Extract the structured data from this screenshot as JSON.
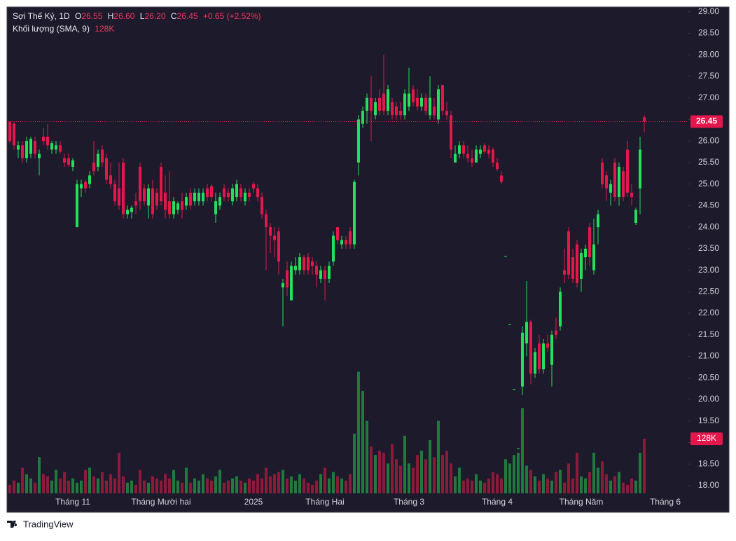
{
  "chart_data": {
    "type": "candlestick",
    "title": "Sợi Thế Kỷ, 1D",
    "legend": {
      "o_label": "O",
      "open": "26.55",
      "h_label": "H",
      "high": "26.60",
      "l_label": "L",
      "low": "26.20",
      "c_label": "C",
      "close": "26.45",
      "change": "+0.65 (+2.52%)"
    },
    "volume_title": "Khối lượng (SMA, 9)",
    "volume_value": "128K",
    "up_color": "#22e05b",
    "down_color": "#e3174c",
    "volume_up_color": "#1f7a3d",
    "volume_down_color": "#8c1a3b",
    "categories": [
      null,
      null,
      null,
      null,
      null,
      null,
      null,
      null,
      null,
      null,
      null,
      null,
      null,
      null,
      null,
      "Tháng 11",
      null,
      null,
      null,
      null,
      null,
      null,
      null,
      null,
      null,
      null,
      null,
      null,
      null,
      null,
      null,
      null,
      null,
      null,
      null,
      null,
      "Tháng Mười hai",
      null,
      null,
      null,
      null,
      null,
      null,
      null,
      null,
      null,
      null,
      null,
      null,
      null,
      null,
      null,
      null,
      null,
      null,
      null,
      null,
      null,
      "2025",
      null,
      null,
      null,
      null,
      null,
      null,
      null,
      null,
      null,
      null,
      null,
      null,
      null,
      null,
      null,
      null,
      "Tháng Hai",
      null,
      null,
      null,
      null,
      null,
      null,
      null,
      null,
      null,
      null,
      null,
      null,
      null,
      null,
      null,
      null,
      null,
      null,
      null,
      "Tháng 3",
      null,
      null,
      null,
      null,
      null,
      null,
      null,
      null,
      null,
      null,
      null,
      null,
      null,
      null,
      null,
      null,
      null,
      null,
      null,
      null,
      "Tháng 4",
      null,
      null,
      null,
      null,
      null,
      null,
      null,
      null,
      null,
      null,
      null,
      null,
      null,
      null,
      null,
      null,
      null,
      null,
      null,
      "Tháng Năm",
      null,
      null,
      null,
      null,
      null,
      null,
      null,
      null,
      null,
      null,
      null,
      null,
      null,
      null,
      null,
      null,
      null,
      null,
      null,
      "Tháng 6"
    ],
    "candles": [
      [
        26.45,
        26.45,
        25.95,
        26.0
      ],
      [
        26.4,
        26.45,
        25.8,
        25.9
      ],
      [
        25.8,
        26.0,
        25.6,
        25.9
      ],
      [
        25.9,
        26.0,
        25.5,
        25.6
      ],
      [
        25.6,
        26.1,
        25.5,
        26.0
      ],
      [
        25.7,
        26.1,
        25.6,
        26.05
      ],
      [
        26.0,
        26.1,
        25.6,
        25.7
      ],
      [
        25.6,
        25.8,
        25.2,
        25.7
      ],
      [
        26.1,
        26.3,
        25.9,
        26.0
      ],
      [
        26.1,
        26.4,
        25.8,
        25.9
      ],
      [
        25.8,
        26.0,
        25.7,
        25.95
      ],
      [
        25.8,
        26.0,
        25.7,
        25.9
      ],
      [
        25.9,
        26.0,
        25.7,
        25.75
      ],
      [
        25.6,
        25.7,
        25.4,
        25.5
      ],
      [
        25.6,
        25.7,
        25.4,
        25.45
      ],
      [
        25.4,
        25.6,
        25.3,
        25.55
      ],
      [
        24.0,
        25.1,
        24.0,
        25.0
      ],
      [
        24.9,
        25.1,
        24.7,
        25.0
      ],
      [
        25.05,
        25.1,
        24.8,
        24.9
      ],
      [
        25.0,
        25.3,
        24.9,
        25.2
      ],
      [
        25.5,
        26.0,
        25.2,
        25.3
      ],
      [
        25.4,
        25.8,
        25.3,
        25.7
      ],
      [
        25.8,
        25.9,
        25.4,
        25.5
      ],
      [
        25.6,
        25.7,
        25.0,
        25.1
      ],
      [
        25.2,
        25.5,
        24.9,
        25.0
      ],
      [
        25.0,
        25.1,
        24.5,
        24.6
      ],
      [
        24.9,
        25.5,
        24.4,
        24.5
      ],
      [
        25.5,
        25.6,
        24.2,
        24.3
      ],
      [
        24.3,
        24.5,
        24.2,
        24.4
      ],
      [
        24.35,
        24.5,
        24.2,
        24.45
      ],
      [
        24.6,
        24.8,
        24.3,
        24.5
      ],
      [
        25.4,
        25.5,
        24.4,
        24.6
      ],
      [
        24.9,
        25.0,
        24.5,
        24.6
      ],
      [
        24.5,
        25.0,
        24.2,
        24.9
      ],
      [
        24.9,
        25.1,
        24.2,
        24.3
      ],
      [
        24.8,
        24.9,
        24.4,
        24.5
      ],
      [
        25.4,
        25.5,
        24.5,
        24.6
      ],
      [
        24.8,
        25.2,
        24.2,
        24.4
      ],
      [
        24.6,
        25.3,
        24.2,
        24.3
      ],
      [
        24.3,
        24.7,
        24.2,
        24.6
      ],
      [
        24.4,
        24.6,
        24.3,
        24.55
      ],
      [
        24.6,
        24.8,
        24.2,
        24.4
      ],
      [
        24.5,
        24.8,
        24.4,
        24.7
      ],
      [
        24.8,
        24.9,
        24.4,
        24.5
      ],
      [
        24.6,
        24.9,
        24.5,
        24.8
      ],
      [
        24.6,
        24.9,
        24.5,
        24.8
      ],
      [
        24.6,
        24.9,
        24.5,
        24.8
      ],
      [
        24.9,
        25.0,
        24.6,
        24.7
      ],
      [
        24.95,
        25.0,
        24.6,
        24.7
      ],
      [
        24.3,
        24.8,
        24.1,
        24.6
      ],
      [
        24.5,
        24.8,
        24.4,
        24.7
      ],
      [
        24.9,
        25.0,
        24.6,
        24.7
      ],
      [
        24.8,
        24.9,
        24.6,
        24.7
      ],
      [
        24.6,
        25.0,
        24.5,
        24.9
      ],
      [
        24.7,
        25.1,
        24.6,
        25.0
      ],
      [
        24.9,
        25.0,
        24.6,
        24.7
      ],
      [
        24.6,
        24.9,
        24.5,
        24.8
      ],
      [
        24.8,
        24.9,
        24.6,
        24.7
      ],
      [
        25.0,
        25.05,
        24.8,
        24.9
      ],
      [
        24.9,
        25.0,
        24.6,
        24.7
      ],
      [
        24.7,
        24.8,
        24.2,
        24.3
      ],
      [
        24.3,
        24.4,
        23.0,
        24.0
      ],
      [
        24.0,
        24.1,
        23.4,
        23.8
      ],
      [
        23.8,
        24.0,
        23.3,
        23.7
      ],
      [
        23.9,
        24.0,
        22.9,
        23.2
      ],
      [
        22.6,
        22.8,
        21.7,
        22.7
      ],
      [
        23.0,
        23.2,
        22.4,
        22.6
      ],
      [
        22.3,
        23.2,
        22.3,
        23.1
      ],
      [
        23.0,
        23.3,
        22.9,
        23.1
      ],
      [
        23.0,
        23.4,
        22.9,
        23.3
      ],
      [
        23.3,
        23.35,
        22.9,
        23.0
      ],
      [
        23.3,
        23.4,
        22.9,
        23.0
      ],
      [
        23.2,
        23.3,
        22.9,
        23.1
      ],
      [
        23.1,
        23.2,
        22.6,
        22.9
      ],
      [
        22.8,
        23.1,
        22.7,
        23.0
      ],
      [
        23.0,
        23.1,
        22.3,
        22.8
      ],
      [
        22.8,
        23.2,
        22.7,
        23.1
      ],
      [
        23.2,
        23.9,
        23.1,
        23.8
      ],
      [
        24.0,
        24.0,
        23.6,
        23.7
      ],
      [
        23.6,
        23.8,
        23.5,
        23.7
      ],
      [
        23.7,
        23.8,
        23.5,
        23.6
      ],
      [
        23.9,
        24.0,
        23.5,
        23.6
      ],
      [
        23.6,
        25.1,
        23.5,
        25.05
      ],
      [
        25.5,
        26.6,
        25.2,
        26.5
      ],
      [
        26.4,
        26.8,
        26.3,
        26.7
      ],
      [
        26.7,
        27.1,
        26.4,
        27.0
      ],
      [
        27.0,
        27.5,
        26.0,
        26.7
      ],
      [
        26.6,
        27.0,
        26.5,
        26.9
      ],
      [
        27.0,
        27.2,
        26.6,
        26.7
      ],
      [
        27.1,
        28.0,
        26.6,
        26.7
      ],
      [
        26.7,
        27.3,
        26.6,
        27.2
      ],
      [
        26.9,
        27.0,
        26.5,
        26.6
      ],
      [
        26.8,
        26.9,
        26.5,
        26.6
      ],
      [
        26.7,
        26.9,
        26.5,
        26.6
      ],
      [
        26.6,
        27.2,
        26.5,
        27.1
      ],
      [
        26.8,
        27.7,
        26.7,
        27.1
      ],
      [
        27.2,
        27.3,
        26.8,
        26.9
      ],
      [
        27.0,
        27.2,
        26.7,
        26.8
      ],
      [
        26.8,
        27.1,
        26.7,
        27.0
      ],
      [
        27.0,
        27.1,
        26.6,
        26.7
      ],
      [
        26.6,
        27.5,
        26.5,
        27.0
      ],
      [
        26.8,
        27.0,
        26.5,
        26.6
      ],
      [
        26.5,
        27.3,
        26.4,
        27.2
      ],
      [
        27.3,
        27.3,
        26.6,
        26.7
      ],
      [
        26.7,
        26.9,
        26.5,
        26.6
      ],
      [
        26.6,
        26.7,
        25.6,
        25.8
      ],
      [
        25.5,
        25.9,
        25.5,
        25.7
      ],
      [
        25.7,
        26.0,
        25.6,
        25.9
      ],
      [
        25.9,
        26.0,
        25.6,
        25.7
      ],
      [
        25.7,
        25.9,
        25.5,
        25.6
      ],
      [
        25.6,
        25.8,
        25.4,
        25.5
      ],
      [
        25.5,
        25.9,
        25.5,
        25.8
      ],
      [
        25.7,
        25.9,
        25.6,
        25.8
      ],
      [
        25.9,
        25.95,
        25.7,
        25.75
      ],
      [
        25.8,
        25.9,
        25.6,
        25.7
      ],
      [
        25.8,
        25.85,
        25.4,
        25.5
      ],
      [
        25.5,
        25.6,
        25.3,
        25.35
      ],
      [
        25.2,
        25.3,
        25.0,
        25.05
      ],
      [
        23.33,
        23.33,
        23.33,
        23.33
      ],
      [
        21.74,
        21.74,
        21.74,
        21.74
      ],
      [
        20.24,
        20.24,
        20.24,
        20.24
      ],
      [
        18.86,
        18.86,
        18.86,
        18.86
      ],
      [
        20.3,
        21.7,
        20.1,
        21.55
      ],
      [
        21.3,
        22.75,
        21.0,
        21.8
      ],
      [
        21.8,
        21.85,
        20.35,
        20.6
      ],
      [
        20.6,
        21.2,
        20.5,
        21.1
      ],
      [
        21.3,
        21.5,
        20.6,
        20.7
      ],
      [
        20.7,
        21.4,
        20.6,
        21.3
      ],
      [
        21.3,
        21.5,
        21.1,
        21.2
      ],
      [
        20.8,
        21.6,
        20.3,
        21.5
      ],
      [
        21.6,
        21.9,
        21.4,
        21.5
      ],
      [
        21.7,
        22.6,
        21.6,
        22.5
      ],
      [
        23.0,
        23.5,
        22.7,
        22.9
      ],
      [
        23.9,
        24.0,
        22.8,
        22.9
      ],
      [
        23.3,
        23.5,
        22.7,
        22.8
      ],
      [
        23.6,
        23.7,
        22.6,
        22.7
      ],
      [
        22.8,
        23.5,
        22.5,
        23.4
      ],
      [
        23.3,
        23.6,
        23.0,
        23.5
      ],
      [
        24.0,
        24.1,
        23.1,
        23.3
      ],
      [
        23.0,
        24.2,
        22.9,
        23.6
      ],
      [
        24.0,
        24.4,
        23.6,
        24.3
      ],
      [
        25.5,
        25.6,
        24.9,
        25.0
      ],
      [
        25.2,
        25.3,
        24.6,
        24.9
      ],
      [
        24.8,
        25.1,
        24.5,
        25.0
      ],
      [
        25.5,
        25.6,
        24.6,
        24.7
      ],
      [
        24.7,
        25.5,
        24.5,
        25.4
      ],
      [
        25.3,
        25.4,
        24.6,
        24.7
      ],
      [
        25.8,
        26.0,
        24.7,
        24.8
      ],
      [
        24.8,
        25.0,
        24.5,
        24.7
      ],
      [
        24.1,
        24.45,
        24.05,
        24.4
      ],
      [
        24.9,
        26.1,
        24.3,
        25.8
      ],
      [
        26.55,
        26.6,
        26.2,
        26.45
      ],
      null,
      null,
      null,
      null,
      null
    ],
    "volume": [
      20,
      30,
      25,
      60,
      45,
      35,
      25,
      85,
      45,
      40,
      30,
      55,
      35,
      50,
      30,
      35,
      25,
      30,
      55,
      60,
      40,
      35,
      50,
      30,
      45,
      35,
      95,
      40,
      25,
      30,
      20,
      55,
      30,
      25,
      40,
      35,
      30,
      45,
      35,
      55,
      30,
      25,
      60,
      25,
      35,
      30,
      45,
      35,
      30,
      40,
      55,
      25,
      30,
      35,
      40,
      30,
      25,
      35,
      30,
      45,
      35,
      60,
      40,
      45,
      50,
      55,
      35,
      40,
      30,
      45,
      35,
      25,
      20,
      30,
      45,
      60,
      35,
      50,
      40,
      35,
      30,
      45,
      140,
      285,
      240,
      170,
      110,
      90,
      100,
      95,
      70,
      115,
      80,
      65,
      135,
      70,
      60,
      90,
      100,
      80,
      125,
      85,
      170,
      90,
      100,
      70,
      40,
      60,
      30,
      35,
      30,
      45,
      30,
      25,
      35,
      50,
      45,
      35,
      80,
      70,
      90,
      95,
      200,
      65,
      55,
      40,
      30,
      45,
      35,
      30,
      50,
      55,
      25,
      70,
      35,
      95,
      40,
      35,
      50,
      95,
      60,
      75,
      45,
      30,
      40,
      50,
      25,
      20,
      35,
      30,
      95,
      128,
      null,
      null,
      null,
      null,
      null
    ],
    "ylim": [
      17.82,
      29.11
    ],
    "yticks": [
      {
        "value": 18,
        "label": "18.00"
      },
      {
        "value": 18.5,
        "label": "18.50"
      },
      {
        "value": 19,
        "label": "19.00"
      },
      {
        "value": 19.5,
        "label": "19.50"
      },
      {
        "value": 20,
        "label": "20.00"
      },
      {
        "value": 20.5,
        "label": "20.50"
      },
      {
        "value": 21,
        "label": "21.00"
      },
      {
        "value": 21.5,
        "label": "21.50"
      },
      {
        "value": 22,
        "label": "22.00"
      },
      {
        "value": 22.5,
        "label": "22.50"
      },
      {
        "value": 23,
        "label": "23.00"
      },
      {
        "value": 23.5,
        "label": "23.50"
      },
      {
        "value": 24,
        "label": "24.00"
      },
      {
        "value": 24.5,
        "label": "24.50"
      },
      {
        "value": 25,
        "label": "25.00"
      },
      {
        "value": 25.5,
        "label": "25.50"
      },
      {
        "value": 26,
        "label": "26.00"
      },
      {
        "value": 26.5,
        "label": "26.50"
      },
      {
        "value": 27,
        "label": "27.00"
      },
      {
        "value": 27.5,
        "label": "27.50"
      },
      {
        "value": 28,
        "label": "28.00"
      },
      {
        "value": 28.5,
        "label": "28.50"
      },
      {
        "value": 29,
        "label": "29.00"
      }
    ],
    "y2lim": [
      0,
      1140
    ],
    "last_price": {
      "value": 26.45,
      "label": "26.45"
    },
    "last_volume": {
      "value": 128,
      "label": "128K"
    }
  },
  "footer": {
    "brand": "TradingView"
  }
}
